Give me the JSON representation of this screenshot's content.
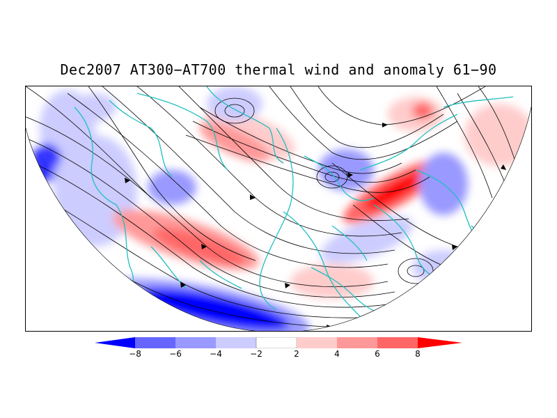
{
  "title": "Dec2007 AT300−AT700 thermal wind and anomaly 61−90",
  "colorbar": {
    "labels": [
      "−8",
      "−6",
      "−4",
      "−2",
      "2",
      "4",
      "6",
      "8"
    ],
    "colors": [
      "#0000ff",
      "#6666ff",
      "#9999ff",
      "#ccccff",
      "#ffffff",
      "#ffcccc",
      "#ff9999",
      "#ff6666",
      "#ff0000"
    ]
  },
  "map": {
    "projection": "polar-stereographic-northern-hemisphere",
    "coastline_color": "#1fbfbf",
    "streamline_color": "#000000"
  }
}
